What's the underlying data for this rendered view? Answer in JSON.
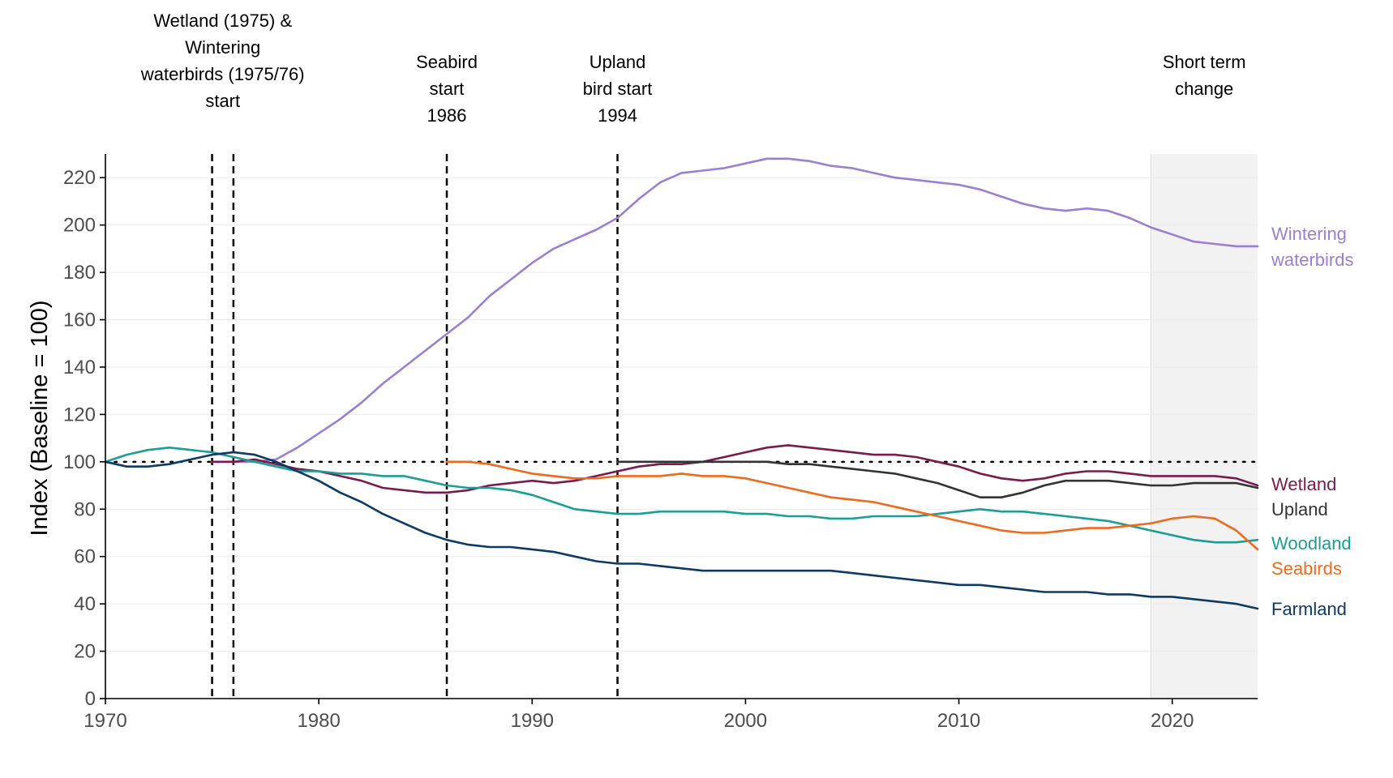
{
  "chart_data": {
    "type": "line",
    "title": "",
    "xlabel": "",
    "ylabel": "Index (Baseline = 100)",
    "xlim": [
      1970,
      2024
    ],
    "ylim": [
      0,
      230
    ],
    "xticks": [
      1970,
      1980,
      1990,
      2000,
      2010,
      2020
    ],
    "yticks": [
      0,
      20,
      40,
      60,
      80,
      100,
      120,
      140,
      160,
      180,
      200,
      220
    ],
    "baseline": 100,
    "short_term_period": [
      2019,
      2024
    ],
    "reference_lines": [
      {
        "year": 1975,
        "label": [
          "Wetland (1975) &",
          "Wintering",
          "waterbirds (1975/76)",
          "start"
        ],
        "label_center": 1975.5
      },
      {
        "year": 1976,
        "label": [],
        "label_center": 1976
      },
      {
        "year": 1986,
        "label": [
          "Seabird",
          "start",
          "1986"
        ],
        "label_center": 1986
      },
      {
        "year": 1994,
        "label": [
          "Upland",
          "bird start",
          "1994"
        ],
        "label_center": 1994
      }
    ],
    "shaded_label": [
      "Short term",
      "change"
    ],
    "series": [
      {
        "name": "Wintering waterbirds",
        "label_lines": [
          "Wintering",
          "waterbirds"
        ],
        "color": "#9b7fd4",
        "x": [
          1976,
          1977,
          1978,
          1979,
          1980,
          1981,
          1982,
          1983,
          1984,
          1985,
          1986,
          1987,
          1988,
          1989,
          1990,
          1991,
          1992,
          1993,
          1994,
          1995,
          1996,
          1997,
          1998,
          1999,
          2000,
          2001,
          2002,
          2003,
          2004,
          2005,
          2006,
          2007,
          2008,
          2009,
          2010,
          2011,
          2012,
          2013,
          2014,
          2015,
          2016,
          2017,
          2018,
          2019,
          2020,
          2021,
          2022,
          2023,
          2024
        ],
        "y": [
          100,
          100,
          101,
          106,
          112,
          118,
          125,
          133,
          140,
          147,
          154,
          161,
          170,
          177,
          184,
          190,
          194,
          198,
          203,
          211,
          218,
          222,
          223,
          224,
          226,
          228,
          228,
          227,
          225,
          224,
          222,
          220,
          219,
          218,
          217,
          215,
          212,
          209,
          207,
          206,
          207,
          206,
          203,
          199,
          196,
          193,
          192,
          191,
          191
        ]
      },
      {
        "name": "Wetland",
        "label_lines": [
          "Wetland"
        ],
        "color": "#7b1a4c",
        "x": [
          1975,
          1976,
          1977,
          1978,
          1979,
          1980,
          1981,
          1982,
          1983,
          1984,
          1985,
          1986,
          1987,
          1988,
          1989,
          1990,
          1991,
          1992,
          1993,
          1994,
          1995,
          1996,
          1997,
          1998,
          1999,
          2000,
          2001,
          2002,
          2003,
          2004,
          2005,
          2006,
          2007,
          2008,
          2009,
          2010,
          2011,
          2012,
          2013,
          2014,
          2015,
          2016,
          2017,
          2018,
          2019,
          2020,
          2021,
          2022,
          2023,
          2024
        ],
        "y": [
          100,
          100,
          101,
          99,
          97,
          96,
          94,
          92,
          89,
          88,
          87,
          87,
          88,
          90,
          91,
          92,
          91,
          92,
          94,
          96,
          98,
          99,
          99,
          100,
          102,
          104,
          106,
          107,
          106,
          105,
          104,
          103,
          103,
          102,
          100,
          98,
          95,
          93,
          92,
          93,
          95,
          96,
          96,
          95,
          94,
          94,
          94,
          94,
          93,
          90
        ]
      },
      {
        "name": "Upland",
        "label_lines": [
          "Upland"
        ],
        "color": "#333333",
        "x": [
          1994,
          1995,
          1996,
          1997,
          1998,
          1999,
          2000,
          2001,
          2002,
          2003,
          2004,
          2005,
          2006,
          2007,
          2008,
          2009,
          2010,
          2011,
          2012,
          2013,
          2014,
          2015,
          2016,
          2017,
          2018,
          2019,
          2020,
          2021,
          2022,
          2023,
          2024
        ],
        "y": [
          100,
          100,
          100,
          100,
          100,
          100,
          100,
          100,
          99,
          99,
          98,
          97,
          96,
          95,
          93,
          91,
          88,
          85,
          85,
          87,
          90,
          92,
          92,
          92,
          91,
          90,
          90,
          91,
          91,
          91,
          89
        ]
      },
      {
        "name": "Woodland",
        "label_lines": [
          "Woodland"
        ],
        "color": "#1a9e96",
        "x": [
          1970,
          1971,
          1972,
          1973,
          1974,
          1975,
          1976,
          1977,
          1978,
          1979,
          1980,
          1981,
          1982,
          1983,
          1984,
          1985,
          1986,
          1987,
          1988,
          1989,
          1990,
          1991,
          1992,
          1993,
          1994,
          1995,
          1996,
          1997,
          1998,
          1999,
          2000,
          2001,
          2002,
          2003,
          2004,
          2005,
          2006,
          2007,
          2008,
          2009,
          2010,
          2011,
          2012,
          2013,
          2014,
          2015,
          2016,
          2017,
          2018,
          2019,
          2020,
          2021,
          2022,
          2023,
          2024
        ],
        "y": [
          100,
          103,
          105,
          106,
          105,
          104,
          102,
          100,
          98,
          96,
          96,
          95,
          95,
          94,
          94,
          92,
          90,
          89,
          89,
          88,
          86,
          83,
          80,
          79,
          78,
          78,
          79,
          79,
          79,
          79,
          78,
          78,
          77,
          77,
          76,
          76,
          77,
          77,
          77,
          78,
          79,
          80,
          79,
          79,
          78,
          77,
          76,
          75,
          73,
          71,
          69,
          67,
          66,
          66,
          67
        ]
      },
      {
        "name": "Seabirds",
        "label_lines": [
          "Seabirds"
        ],
        "color": "#f06a1d",
        "x": [
          1986,
          1987,
          1988,
          1989,
          1990,
          1991,
          1992,
          1993,
          1994,
          1995,
          1996,
          1997,
          1998,
          1999,
          2000,
          2001,
          2002,
          2003,
          2004,
          2005,
          2006,
          2007,
          2008,
          2009,
          2010,
          2011,
          2012,
          2013,
          2014,
          2015,
          2016,
          2017,
          2018,
          2019,
          2020,
          2021,
          2022,
          2023,
          2024
        ],
        "y": [
          100,
          100,
          99,
          97,
          95,
          94,
          93,
          93,
          94,
          94,
          94,
          95,
          94,
          94,
          93,
          91,
          89,
          87,
          85,
          84,
          83,
          81,
          79,
          77,
          75,
          73,
          71,
          70,
          70,
          71,
          72,
          72,
          73,
          74,
          76,
          77,
          76,
          71,
          63
        ]
      },
      {
        "name": "Farmland",
        "label_lines": [
          "Farmland"
        ],
        "color": "#0d3a66",
        "x": [
          1970,
          1971,
          1972,
          1973,
          1974,
          1975,
          1976,
          1977,
          1978,
          1979,
          1980,
          1981,
          1982,
          1983,
          1984,
          1985,
          1986,
          1987,
          1988,
          1989,
          1990,
          1991,
          1992,
          1993,
          1994,
          1995,
          1996,
          1997,
          1998,
          1999,
          2000,
          2001,
          2002,
          2003,
          2004,
          2005,
          2006,
          2007,
          2008,
          2009,
          2010,
          2011,
          2012,
          2013,
          2014,
          2015,
          2016,
          2017,
          2018,
          2019,
          2020,
          2021,
          2022,
          2023,
          2024
        ],
        "y": [
          100,
          98,
          98,
          99,
          101,
          103,
          104,
          103,
          100,
          96,
          92,
          87,
          83,
          78,
          74,
          70,
          67,
          65,
          64,
          64,
          63,
          62,
          60,
          58,
          57,
          57,
          56,
          55,
          54,
          54,
          54,
          54,
          54,
          54,
          54,
          53,
          52,
          51,
          50,
          49,
          48,
          48,
          47,
          46,
          45,
          45,
          45,
          44,
          44,
          43,
          43,
          42,
          41,
          40,
          38
        ]
      }
    ]
  }
}
